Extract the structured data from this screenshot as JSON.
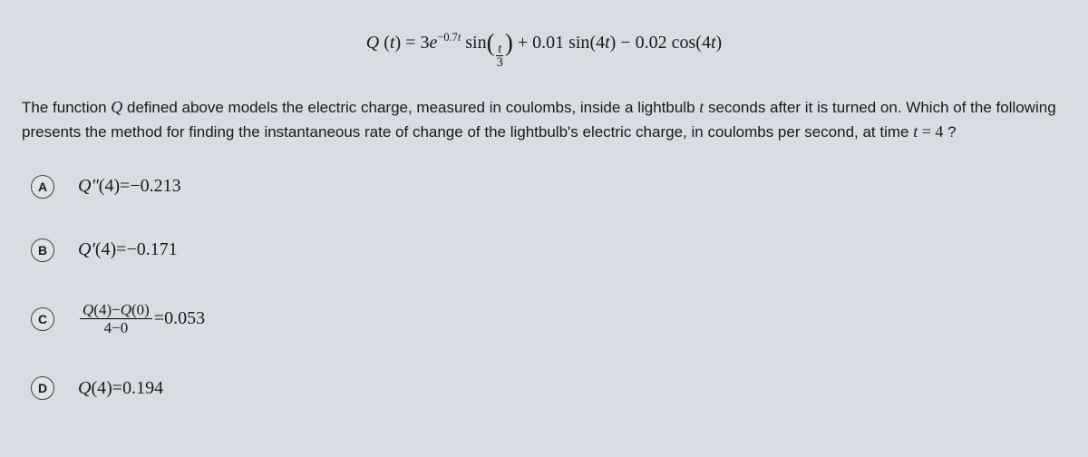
{
  "background_color": "#d8dce3",
  "text_color": "#1a1a1a",
  "equation": {
    "funcName": "Q",
    "argVar": "t",
    "coef1": "3",
    "eBase": "e",
    "exponent": "−0.7t",
    "trig1": "sin",
    "innerFracNum": "t",
    "innerFracDen": "3",
    "plus": " + ",
    "coef2": "0.01",
    "trig2": "sin",
    "arg2": "4t",
    "minus": " − ",
    "coef3": "0.02",
    "trig3": "cos",
    "arg3": "4t"
  },
  "question": {
    "part1": "The function ",
    "qvar": "Q",
    "part2": " defined above models the electric charge, measured in coulombs, inside a lightbulb ",
    "tvar": "t",
    "part3": " seconds after it is turned on. Which of the following presents the method for finding the instantaneous rate of change of the lightbulb's electric charge, in coulombs per second, at time ",
    "teq": "t = 4",
    "qmark": " ?"
  },
  "options": {
    "A": {
      "letter": "A",
      "lhsFunc": "Q″",
      "lhsArg": "(4)",
      "eq": " = ",
      "rhs": "−0.213"
    },
    "B": {
      "letter": "B",
      "lhsFunc": "Q′",
      "lhsArg": "(4)",
      "eq": " = ",
      "rhs": "−0.171"
    },
    "C": {
      "letter": "C",
      "fracNum": "Q(4)−Q(0)",
      "fracDen": "4−0",
      "eq": " = ",
      "rhs": "0.053"
    },
    "D": {
      "letter": "D",
      "lhsFunc": "Q",
      "lhsArg": " (4)",
      "eq": " = ",
      "rhs": "0.194"
    }
  }
}
